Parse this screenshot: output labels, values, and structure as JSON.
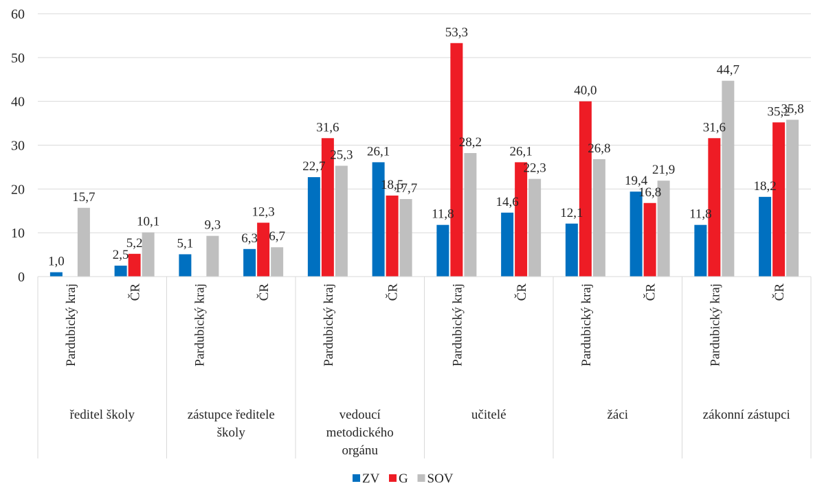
{
  "chart_data": {
    "type": "bar",
    "ylim": [
      0,
      60
    ],
    "yticks": [
      "0",
      "10",
      "20",
      "30",
      "40",
      "50",
      "60"
    ],
    "grid": true,
    "legend_position": "bottom",
    "groups": [
      "ředitel školy",
      "zástupce ředitele školy",
      "vedoucí metodického orgánu",
      "učitelé",
      "žáci",
      "zákonní zástupci"
    ],
    "group_lines": [
      [
        "ředitel školy"
      ],
      [
        "zástupce ředitele",
        "školy"
      ],
      [
        "vedoucí",
        "metodického",
        "orgánu"
      ],
      [
        "učitelé"
      ],
      [
        "žáci"
      ],
      [
        "zákonní zástupci"
      ]
    ],
    "subcategories": [
      "Pardubický kraj",
      "ČR"
    ],
    "categories": [
      "Pardubický kraj",
      "ČR",
      "Pardubický kraj",
      "ČR",
      "Pardubický kraj",
      "ČR",
      "Pardubický kraj",
      "ČR",
      "Pardubický kraj",
      "ČR",
      "Pardubický kraj",
      "ČR"
    ],
    "series": [
      {
        "name": "ZV",
        "color": "#0070c0",
        "values": [
          1.0,
          2.5,
          5.1,
          6.3,
          22.7,
          26.1,
          11.8,
          14.6,
          12.1,
          19.4,
          11.8,
          18.2
        ],
        "labels": [
          "1,0",
          "2,5",
          "5,1",
          "6,3",
          "22,7",
          "26,1",
          "11,8",
          "14,6",
          "12,1",
          "19,4",
          "11,8",
          "18,2"
        ]
      },
      {
        "name": "G",
        "color": "#ee1c25",
        "values": [
          null,
          5.2,
          null,
          12.3,
          31.6,
          18.5,
          53.3,
          26.1,
          40.0,
          16.8,
          31.6,
          35.2
        ],
        "labels": [
          "",
          "5,2",
          "",
          "12,3",
          "31,6",
          "18,5",
          "53,3",
          "26,1",
          "40,0",
          "16,8",
          "31,6",
          "35,2"
        ]
      },
      {
        "name": "SOV",
        "color": "#bfbfbf",
        "values": [
          15.7,
          10.1,
          9.3,
          6.7,
          25.3,
          17.7,
          28.2,
          22.3,
          26.8,
          21.9,
          44.7,
          35.8
        ],
        "labels": [
          "15,7",
          "10,1",
          "9,3",
          "6,7",
          "25,3",
          "17,7",
          "28,2",
          "22,3",
          "26,8",
          "21,9",
          "44,7",
          "35,8"
        ]
      }
    ]
  }
}
